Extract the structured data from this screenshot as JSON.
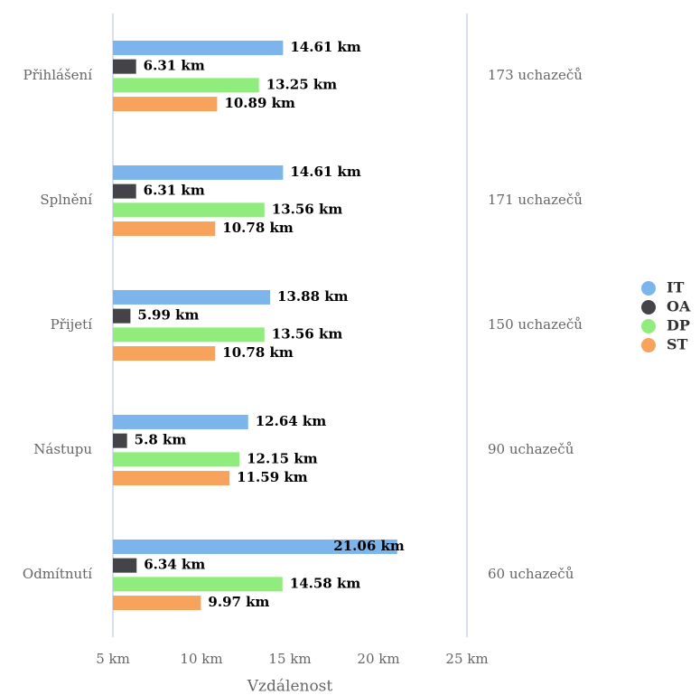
{
  "chart_data": {
    "type": "bar",
    "orientation": "horizontal",
    "categories": [
      "Přihlášení",
      "Splnění",
      "Přijetí",
      "Nástupu",
      "Odmítnutí"
    ],
    "annotations": [
      "173 uchazečů",
      "171 uchazečů",
      "150 uchazečů",
      "90 uchazečů",
      "60 uchazečů"
    ],
    "series": [
      {
        "name": "IT",
        "color": "#7cb5ec",
        "values": [
          14.61,
          14.61,
          13.88,
          12.64,
          21.06
        ],
        "value_labels": [
          "14.61 km",
          "14.61 km",
          "13.88 km",
          "12.64 km",
          "21.06 km"
        ]
      },
      {
        "name": "OA",
        "color": "#434348",
        "values": [
          6.31,
          6.31,
          5.99,
          5.8,
          6.34
        ],
        "value_labels": [
          "6.31 km",
          "6.31 km",
          "5.99 km",
          "5.8 km",
          "6.34 km"
        ]
      },
      {
        "name": "DP",
        "color": "#90ed7d",
        "values": [
          13.25,
          13.56,
          13.56,
          12.15,
          14.58
        ],
        "value_labels": [
          "13.25 km",
          "13.56 km",
          "13.56 km",
          "12.15 km",
          "14.58 km"
        ]
      },
      {
        "name": "ST",
        "color": "#f7a35c",
        "values": [
          10.89,
          10.78,
          10.78,
          11.59,
          9.97
        ],
        "value_labels": [
          "10.89 km",
          "10.78 km",
          "10.78 km",
          "11.59 km",
          "9.97 km"
        ]
      }
    ],
    "xlabel": "Vzdálenost",
    "xlim": [
      5,
      25
    ],
    "xticks": [
      {
        "value": 5,
        "label": "5 km"
      },
      {
        "value": 10,
        "label": "10 km"
      },
      {
        "value": 15,
        "label": "15 km"
      },
      {
        "value": 20,
        "label": "20 km"
      },
      {
        "value": 25,
        "label": "25 km"
      }
    ],
    "grid": false,
    "legend": "right"
  }
}
